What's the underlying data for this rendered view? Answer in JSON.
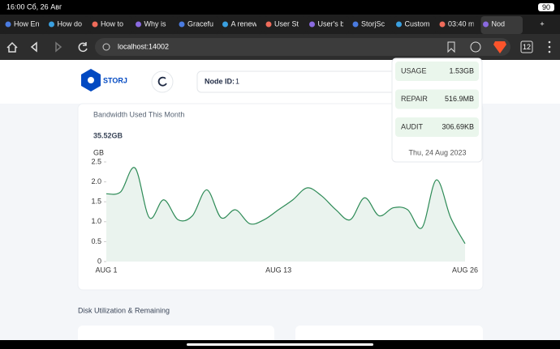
{
  "status_bar": {
    "time": "16:00 Сб, 26 Авг",
    "battery": "90"
  },
  "tabs": [
    "How En",
    "How do",
    "How to",
    "Why is",
    "Graceful",
    "A renew",
    "User St",
    "User's b",
    "StorjSc",
    "Custom",
    "03:40 m",
    "Nod"
  ],
  "tab_count": "12",
  "address": "localhost:14002",
  "header": {
    "logo": "STORJ",
    "node_id_label": "Node ID:",
    "node_id": "1"
  },
  "bandwidth": {
    "title": "Bandwidth Used This Month",
    "total": "35.52GB",
    "chart": {
      "type": "line",
      "y_label": "GB",
      "color": "#2e8b57",
      "categories": [
        "AUG 1",
        null,
        null,
        null,
        null,
        null,
        null,
        null,
        null,
        null,
        null,
        null,
        "AUG 13",
        null,
        null,
        null,
        null,
        null,
        null,
        null,
        null,
        null,
        null,
        null,
        null,
        "AUG 26"
      ],
      "values": [
        1.7,
        1.75,
        2.35,
        1.1,
        1.55,
        1.05,
        1.15,
        1.8,
        1.1,
        1.3,
        0.95,
        1.05,
        1.3,
        1.55,
        1.85,
        1.65,
        1.3,
        1.05,
        1.6,
        1.15,
        1.35,
        1.3,
        0.85,
        2.05,
        1.1,
        0.45
      ],
      "ylim": [
        0,
        2.5
      ],
      "yticks": [
        0,
        0.5,
        {
          "value": 1,
          "label": "1.0"
        },
        1.5,
        {
          "value": 2,
          "label": "2.0"
        },
        2.5
      ]
    }
  },
  "tooltip": {
    "rows": [
      {
        "label": "USAGE",
        "value": "1.53GB"
      },
      {
        "label": "REPAIR",
        "value": "516.9MB"
      },
      {
        "label": "AUDIT",
        "value": "306.69KB"
      }
    ],
    "date": "Thu, 24 Aug 2023"
  },
  "disk_title": "Disk Utilization & Remaining"
}
